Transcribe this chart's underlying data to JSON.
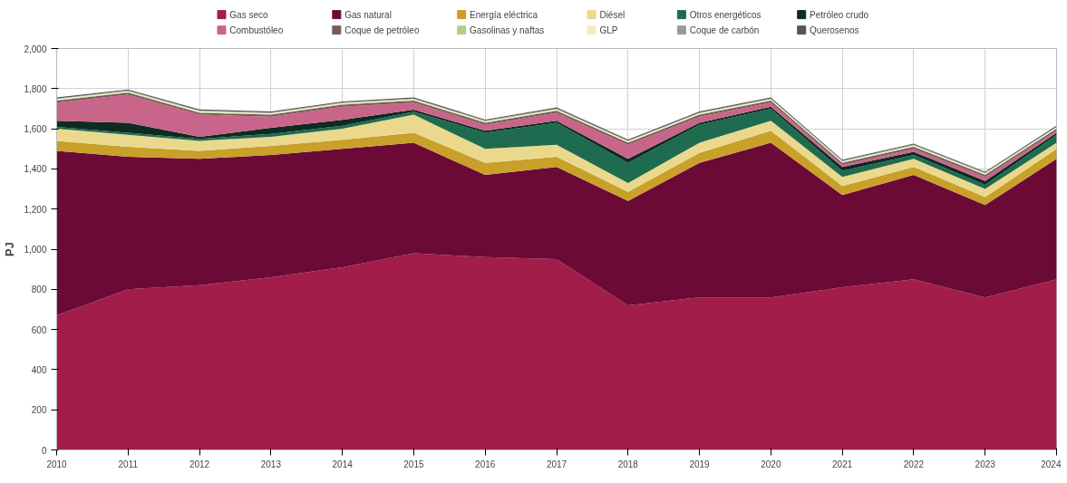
{
  "chart_data": {
    "type": "area",
    "stacked": true,
    "ylabel": "PJ",
    "x": [
      2010,
      2011,
      2012,
      2013,
      2014,
      2015,
      2016,
      2017,
      2018,
      2019,
      2020,
      2021,
      2022,
      2023,
      2024
    ],
    "xlim": [
      2010,
      2024
    ],
    "xticks": [
      2010,
      2011,
      2012,
      2013,
      2014,
      2015,
      2016,
      2017,
      2018,
      2019,
      2020,
      2021,
      2022,
      2023,
      2024
    ],
    "ylim": [
      0,
      2000
    ],
    "yticks": [
      {
        "value": 0,
        "label": "0"
      },
      {
        "value": 200,
        "label": "200"
      },
      {
        "value": 400,
        "label": "400"
      },
      {
        "value": 600,
        "label": "600"
      },
      {
        "value": 800,
        "label": "800"
      },
      {
        "value": 1000,
        "label": "1,000"
      },
      {
        "value": 1200,
        "label": "1,200"
      },
      {
        "value": 1400,
        "label": "1,400"
      },
      {
        "value": 1600,
        "label": "1,600"
      },
      {
        "value": 1800,
        "label": "1,800"
      },
      {
        "value": 2000,
        "label": "2,000"
      }
    ],
    "grid": true,
    "legend": "top",
    "series": [
      {
        "name": "Gas seco",
        "color": "#a31d4a",
        "values": [
          670,
          800,
          820,
          860,
          910,
          980,
          960,
          950,
          720,
          760,
          760,
          810,
          850,
          760,
          850
        ]
      },
      {
        "name": "Gas natural",
        "color": "#6b0a36",
        "values": [
          820,
          660,
          630,
          610,
          590,
          550,
          410,
          460,
          520,
          670,
          770,
          460,
          520,
          460,
          600
        ]
      },
      {
        "name": "Energía eléctrica",
        "color": "#c8a02a",
        "values": [
          50,
          50,
          40,
          45,
          45,
          50,
          60,
          50,
          45,
          50,
          60,
          45,
          40,
          40,
          50
        ]
      },
      {
        "name": "Diésel",
        "color": "#ead98c",
        "values": [
          60,
          60,
          50,
          45,
          55,
          90,
          70,
          60,
          45,
          50,
          50,
          45,
          40,
          40,
          30
        ]
      },
      {
        "name": "Otros energéticos",
        "color": "#1e6b50",
        "values": [
          10,
          10,
          10,
          15,
          15,
          15,
          80,
          110,
          100,
          90,
          60,
          30,
          20,
          20,
          40
        ]
      },
      {
        "name": "Petróleo crudo",
        "color": "#0d2b20",
        "values": [
          30,
          50,
          10,
          30,
          30,
          10,
          10,
          10,
          20,
          10,
          10,
          20,
          15,
          20,
          10
        ]
      },
      {
        "name": "Combustóleo",
        "color": "#c9648a",
        "values": [
          90,
          140,
          110,
          55,
          65,
          35,
          30,
          40,
          70,
          30,
          20,
          10,
          15,
          20,
          10
        ]
      },
      {
        "name": "Coque de petróleo",
        "color": "#7a5a5a",
        "values": [
          10,
          10,
          10,
          10,
          10,
          10,
          10,
          10,
          10,
          10,
          10,
          10,
          10,
          10,
          10
        ]
      },
      {
        "name": "Gasolinas y naftas",
        "color": "#b4cc88",
        "values": [
          3,
          3,
          3,
          3,
          3,
          3,
          3,
          3,
          3,
          3,
          3,
          3,
          3,
          3,
          3
        ]
      },
      {
        "name": "GLP",
        "color": "#f2edc0",
        "values": [
          5,
          5,
          5,
          5,
          5,
          5,
          5,
          5,
          5,
          5,
          5,
          5,
          5,
          5,
          5
        ]
      },
      {
        "name": "Coque de carbón",
        "color": "#999999",
        "values": [
          3,
          3,
          3,
          3,
          3,
          3,
          3,
          3,
          3,
          3,
          3,
          3,
          3,
          3,
          3
        ]
      },
      {
        "name": "Querosenos",
        "color": "#555555",
        "values": [
          5,
          5,
          5,
          5,
          5,
          5,
          5,
          5,
          5,
          5,
          5,
          5,
          5,
          5,
          5
        ]
      }
    ]
  }
}
